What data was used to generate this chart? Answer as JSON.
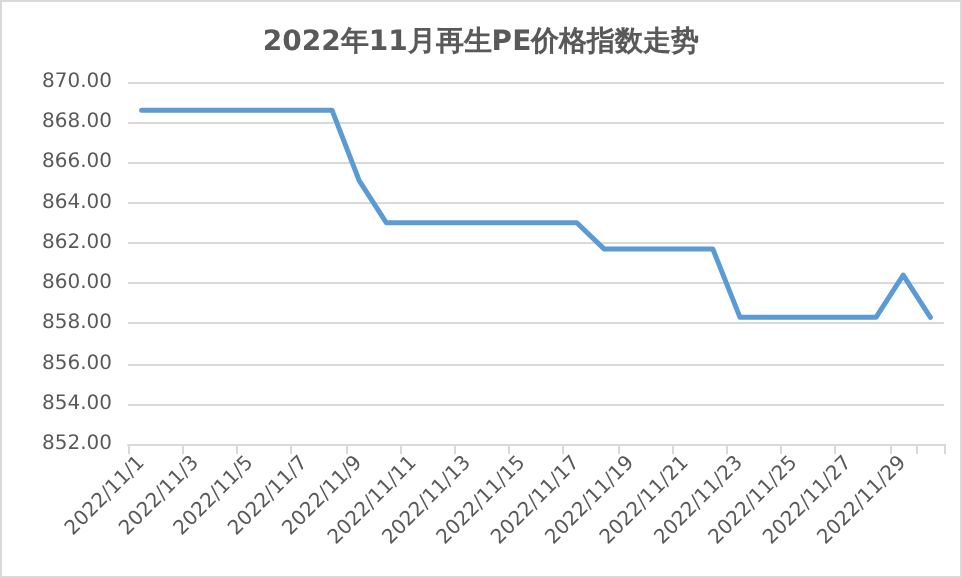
{
  "chart_data": {
    "type": "line",
    "title": "2022年11月再生PE价格指数走势",
    "categories": [
      "2022/11/1",
      null,
      "2022/11/3",
      null,
      "2022/11/5",
      null,
      "2022/11/7",
      null,
      "2022/11/9",
      null,
      "2022/11/11",
      null,
      "2022/11/13",
      null,
      "2022/11/15",
      null,
      "2022/11/17",
      null,
      "2022/11/19",
      null,
      "2022/11/21",
      null,
      "2022/11/23",
      null,
      "2022/11/25",
      null,
      "2022/11/27",
      null,
      "2022/11/29",
      null
    ],
    "series": [
      {
        "color": "#5b9bd5",
        "values": [
          868.6,
          868.6,
          868.6,
          868.6,
          868.6,
          868.6,
          868.6,
          868.6,
          865.1,
          863.0,
          863.0,
          863.0,
          863.0,
          863.0,
          863.0,
          863.0,
          863.0,
          861.7,
          861.7,
          861.7,
          861.7,
          861.7,
          858.3,
          858.3,
          858.3,
          858.3,
          858.3,
          858.3,
          860.4,
          858.3
        ]
      }
    ],
    "ylim": [
      852,
      870
    ],
    "yticks": [
      {
        "value": 852,
        "label": "852.00"
      },
      {
        "value": 854,
        "label": "854.00"
      },
      {
        "value": 856,
        "label": "856.00"
      },
      {
        "value": 858,
        "label": "858.00"
      },
      {
        "value": 860,
        "label": "860.00"
      },
      {
        "value": 862,
        "label": "862.00"
      },
      {
        "value": 864,
        "label": "864.00"
      },
      {
        "value": 866,
        "label": "866.00"
      },
      {
        "value": 868,
        "label": "868.00"
      },
      {
        "value": 870,
        "label": "870.00"
      }
    ],
    "grid": "y",
    "marker": "none",
    "line_style": "solid"
  }
}
